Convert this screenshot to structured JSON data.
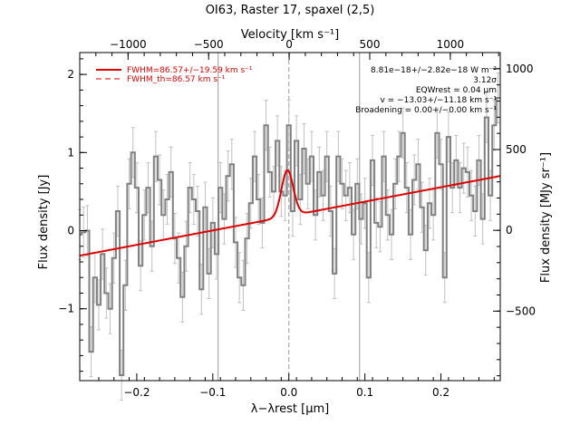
{
  "chart_data": {
    "type": "line",
    "title": "OI63, Raster 17, spaxel (2,5)",
    "xlabel": "λ−λrest [μm]",
    "ylabel": "Flux density [Jy]",
    "top_xlabel": "Velocity [km s⁻¹]",
    "right_ylabel": "Flux density [MJy sr⁻¹]",
    "xlim": [
      -0.275,
      0.278
    ],
    "ylim": [
      -1.92,
      2.28
    ],
    "top_xlim": [
      -1300,
      1310
    ],
    "right_ylim": [
      -930,
      1100
    ],
    "x_ticks": [
      -0.2,
      -0.1,
      0.0,
      0.1,
      0.2
    ],
    "x_tick_labels": [
      "−0.2",
      "−0.1",
      "0.0",
      "0.1",
      "0.2"
    ],
    "y_ticks": [
      -1,
      0,
      1,
      2
    ],
    "y_tick_labels": [
      "−1",
      "0",
      "1",
      "2"
    ],
    "top_ticks": [
      -1000,
      -500,
      0,
      500,
      1000
    ],
    "top_tick_labels": [
      "−1000",
      "−500",
      "0",
      "500",
      "1000"
    ],
    "right_ticks": [
      -500,
      0,
      500,
      1000
    ],
    "right_tick_labels": [
      "−500",
      "0",
      "500",
      "1000"
    ],
    "vlines_solid": [
      -0.093,
      0.093
    ],
    "vline_dashed": 0.0,
    "legend": {
      "position": "top-left",
      "entries": [
        {
          "label": "FWHM=86.57+/−19.59 km s⁻¹",
          "style": "solid"
        },
        {
          "label": "FWHM_th=86.57 km s⁻¹",
          "style": "dashed"
        }
      ]
    },
    "annotations": [
      "8.81e−18+/−2.82e−18 W m⁻²",
      "3.12σ",
      "EQWrest = 0.04 μm",
      "v = −13.03+/−11.18 km s⁻¹",
      "Broadening = 0.00+/−0.00 km s⁻¹"
    ],
    "fit": {
      "continuum": [
        [
          -0.275,
          -0.32
        ],
        [
          0.278,
          0.7
        ]
      ],
      "gaussian_center": -0.002,
      "gaussian_peak": 0.59,
      "gaussian_sigma": 0.0078
    },
    "spectrum": {
      "x": [
        -0.275,
        -0.27,
        -0.265,
        -0.26,
        -0.255,
        -0.25,
        -0.245,
        -0.24,
        -0.235,
        -0.23,
        -0.225,
        -0.22,
        -0.215,
        -0.21,
        -0.205,
        -0.2,
        -0.195,
        -0.19,
        -0.185,
        -0.18,
        -0.175,
        -0.17,
        -0.165,
        -0.16,
        -0.155,
        -0.15,
        -0.145,
        -0.14,
        -0.135,
        -0.13,
        -0.125,
        -0.12,
        -0.115,
        -0.11,
        -0.105,
        -0.1,
        -0.095,
        -0.09,
        -0.085,
        -0.08,
        -0.075,
        -0.07,
        -0.065,
        -0.06,
        -0.055,
        -0.05,
        -0.045,
        -0.04,
        -0.035,
        -0.03,
        -0.025,
        -0.02,
        -0.015,
        -0.01,
        -0.005,
        0.0,
        0.005,
        0.01,
        0.015,
        0.02,
        0.025,
        0.03,
        0.035,
        0.04,
        0.045,
        0.05,
        0.055,
        0.06,
        0.065,
        0.07,
        0.075,
        0.08,
        0.085,
        0.09,
        0.095,
        0.1,
        0.105,
        0.11,
        0.115,
        0.12,
        0.125,
        0.13,
        0.135,
        0.14,
        0.145,
        0.15,
        0.155,
        0.16,
        0.165,
        0.17,
        0.175,
        0.18,
        0.185,
        0.19,
        0.195,
        0.2,
        0.205,
        0.21,
        0.215,
        0.22,
        0.225,
        0.23,
        0.235,
        0.24,
        0.245,
        0.25,
        0.255,
        0.26,
        0.265,
        0.27,
        0.275
      ],
      "y": [
        -0.05,
        -0.02,
        0.0,
        -1.55,
        -0.6,
        -0.95,
        -0.3,
        -0.8,
        -1.0,
        -0.35,
        0.25,
        -1.85,
        -0.7,
        0.6,
        1.0,
        0.55,
        -0.45,
        0.2,
        0.55,
        -0.2,
        0.95,
        0.65,
        0.2,
        0.4,
        0.75,
        -0.1,
        -0.35,
        -0.85,
        -0.2,
        0.55,
        0.4,
        0.25,
        -0.75,
        0.3,
        -0.55,
        0.1,
        -0.3,
        0.55,
        0.15,
        0.7,
        0.85,
        -0.15,
        -0.6,
        -0.7,
        -0.1,
        0.35,
        0.95,
        0.4,
        0.1,
        1.35,
        0.75,
        0.5,
        1.15,
        0.5,
        0.45,
        1.35,
        0.25,
        1.15,
        0.4,
        1.05,
        0.6,
        0.95,
        0.2,
        0.75,
        0.45,
        0.95,
        0.25,
        -0.55,
        0.95,
        0.6,
        0.45,
        0.55,
        -0.05,
        0.6,
        0.15,
        0.35,
        -0.6,
        0.9,
        0.1,
        0.05,
        0.95,
        0.2,
        -0.05,
        0.6,
        0.95,
        1.25,
        0.55,
        -0.05,
        0.65,
        0.85,
        0.3,
        -0.25,
        0.35,
        0.2,
        1.25,
        0.85,
        -0.6,
        1.2,
        0.55,
        0.9,
        0.55,
        0.8,
        0.75,
        0.45,
        0.25,
        0.9,
        0.15,
        1.45,
        0.45,
        1.35,
        1.7
      ],
      "err": 0.32
    }
  }
}
